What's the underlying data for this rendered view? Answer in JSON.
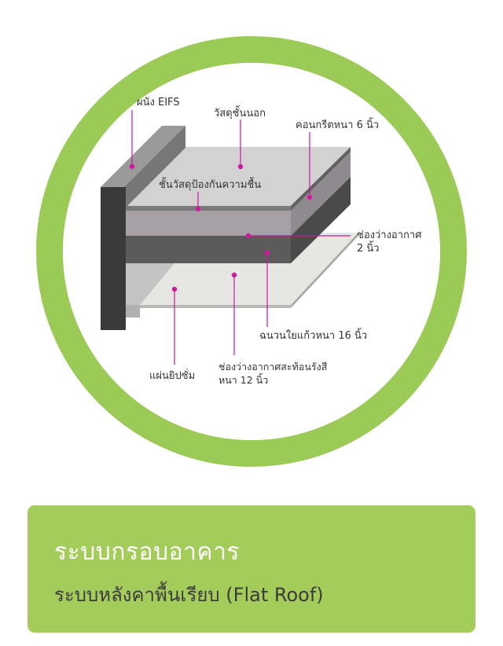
{
  "diagram": {
    "labels": {
      "eifs_wall": "ผนัง EIFS",
      "outer_material": "วัสดุชั้นนอก",
      "concrete": "คอนกรีตหนา 6 นิ้ว",
      "waterproof_layer": "ชั้นวัสดุป้องกันความชื้น",
      "air_gap_line1": "ช่องว่างอากาศ",
      "air_gap_line2": "2 นิ้ว",
      "fiberglass_insulation": "ฉนวนใยแก้วหนา 16 นิ้ว",
      "gypsum_board": "แผ่นยิปซั่ม",
      "reflective_air_gap_line1": "ช่องว่างอากาศสะท้อนรังสี",
      "reflective_air_gap_line2": "หนา 12 นิ้ว"
    },
    "colors": {
      "ring": "#9bcb56",
      "leader_line": "#c8189c",
      "dark_wall": "#3a3a3a"
    }
  },
  "caption": {
    "title": "ระบบกรอบอาคาร",
    "subtitle": "ระบบหลังคาพื้นเรียบ (Flat Roof)",
    "background_color": "#a3cc5a"
  }
}
